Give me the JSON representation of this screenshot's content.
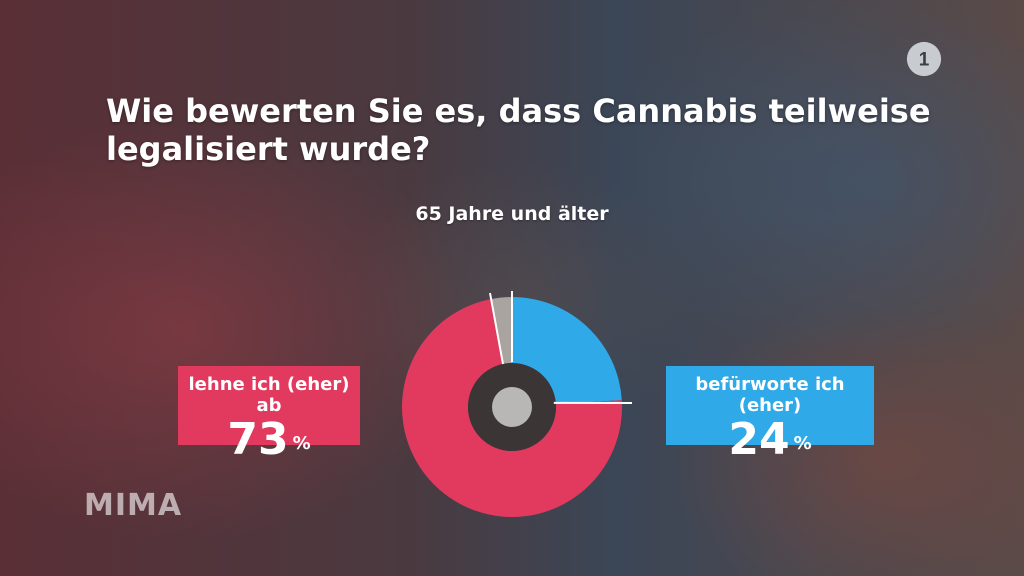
{
  "title": "Wie bewerten Sie es, dass Cannabis teilweise legalisiert wurde?",
  "watermark": "MIMA",
  "chart_data": {
    "type": "pie",
    "title": "Wie bewerten Sie es, dass Cannabis teilweise legalisiert wurde?",
    "subtitle": "65 Jahre und älter",
    "series": [
      {
        "name": "befürworte ich (eher)",
        "value": 24,
        "color": "#2fa9e8"
      },
      {
        "name": "lehne ich (eher) ab",
        "value": 73,
        "color": "#e13a5e"
      },
      {
        "name": "",
        "value": 3,
        "color": "#a9a49f"
      }
    ],
    "labels": {
      "yes": {
        "text": "befürworte ich (eher)",
        "pct": "24",
        "unit": "%"
      },
      "no": {
        "text": "lehne ich (eher) ab",
        "pct": "73",
        "unit": "%"
      }
    }
  }
}
